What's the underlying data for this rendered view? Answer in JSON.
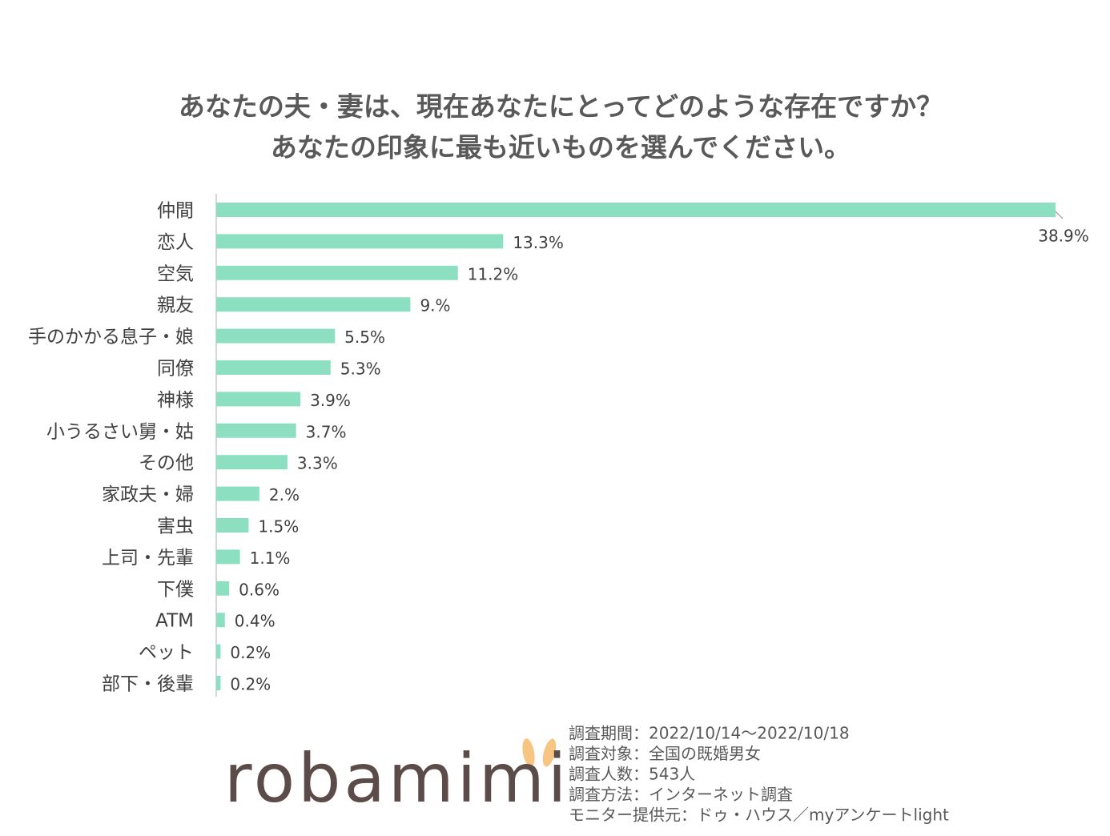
{
  "chart_data": {
    "type": "barh",
    "title": [
      "あなたの夫・妻は、現在あなたにとってどのような存在ですか？",
      "あなたの印象に最も近いものを選んでください。"
    ],
    "categories": [
      "仲間",
      "恋人",
      "空気",
      "親友",
      "手のかかる息子・娘",
      "同僚",
      "神様",
      "小うるさい舅・姑",
      "その他",
      "家政夫・婦",
      "害虫",
      "上司・先輩",
      "下僕",
      "ATM",
      "ペット",
      "部下・後輩"
    ],
    "values": [
      38.9,
      13.3,
      11.2,
      9,
      5.5,
      5.3,
      3.9,
      3.7,
      3.3,
      2,
      1.5,
      1.1,
      0.6,
      0.4,
      0.2,
      0.2
    ],
    "value_labels": [
      "38.9%",
      "13.3%",
      "11.2%",
      "9.%",
      "5.5%",
      "5.3%",
      "3.9%",
      "3.7%",
      "3.3%",
      "2.%",
      "1.5%",
      "1.1%",
      "0.6%",
      "0.4%",
      "0.2%",
      "0.2%"
    ],
    "color": "#8ddfc2"
  },
  "footer": {
    "logo": "robamimi",
    "notes": [
      "調査期間：2022/10/14～2022/10/18",
      "調査対象：全国の既婚男女",
      "調査人数：543人",
      "調査方法：インターネット調査",
      "モニター提供元：ドゥ・ハウス／myアンケートlight"
    ]
  }
}
